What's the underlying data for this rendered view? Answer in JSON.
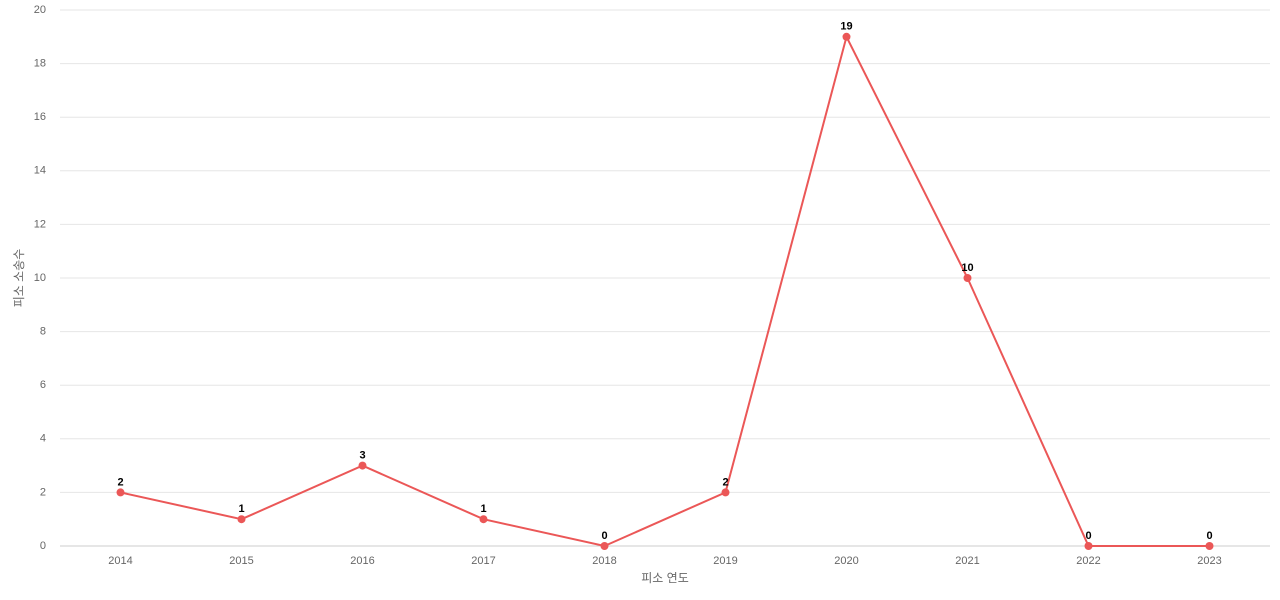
{
  "chart_data": {
    "type": "line",
    "x_label": "피소 연도",
    "y_label": "피소 소송수",
    "categories": [
      "2014",
      "2015",
      "2016",
      "2017",
      "2018",
      "2019",
      "2020",
      "2021",
      "2022",
      "2023"
    ],
    "series": [
      {
        "name": "피소 소송수",
        "color": "#eb5757",
        "values": [
          2,
          1,
          3,
          1,
          0,
          2,
          19,
          10,
          0,
          0
        ]
      }
    ],
    "ylim": [
      0,
      20
    ],
    "yticks": [
      0,
      2,
      4,
      6,
      8,
      10,
      12,
      14,
      16,
      18,
      20
    ],
    "grid": true,
    "data_labels": true
  }
}
